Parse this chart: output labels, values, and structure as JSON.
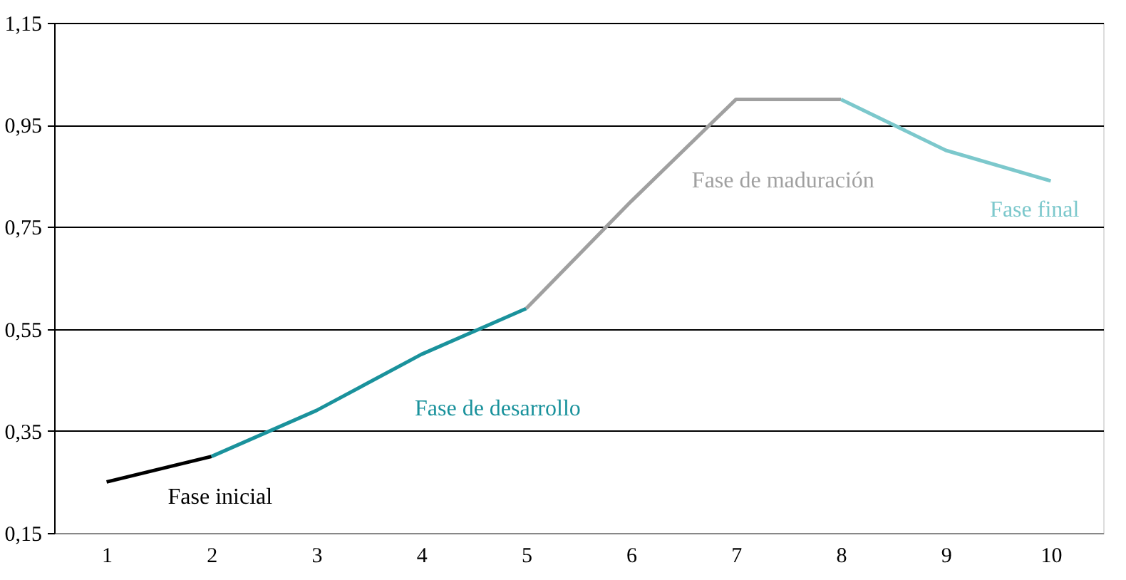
{
  "chart_data": {
    "type": "line",
    "categories": [
      "1",
      "2",
      "3",
      "4",
      "5",
      "6",
      "7",
      "8",
      "9",
      "10"
    ],
    "series": [
      {
        "name": "Fase inicial",
        "color": "#000000",
        "values": [
          0.25,
          0.3,
          null,
          null,
          null,
          null,
          null,
          null,
          null,
          null
        ]
      },
      {
        "name": "Fase de desarrollo",
        "color": "#1a929c",
        "values": [
          null,
          0.3,
          0.39,
          0.5,
          0.59,
          null,
          null,
          null,
          null,
          null
        ]
      },
      {
        "name": "Fase de maduración",
        "color": "#a0a0a0",
        "values": [
          null,
          null,
          null,
          null,
          0.59,
          0.8,
          1.0,
          1.0,
          null,
          null
        ]
      },
      {
        "name": "Fase final",
        "color": "#7cc8cc",
        "values": [
          null,
          null,
          null,
          null,
          null,
          null,
          null,
          1.0,
          0.9,
          0.84
        ]
      }
    ],
    "ylim": [
      0.15,
      1.15
    ],
    "yticks": [
      {
        "value": 0.15,
        "label": "0,15"
      },
      {
        "value": 0.35,
        "label": "0,35"
      },
      {
        "value": 0.55,
        "label": "0,55"
      },
      {
        "value": 0.75,
        "label": "0,75"
      },
      {
        "value": 0.95,
        "label": "0,95"
      },
      {
        "value": 1.15,
        "label": "1,15"
      }
    ],
    "grid": "y"
  }
}
